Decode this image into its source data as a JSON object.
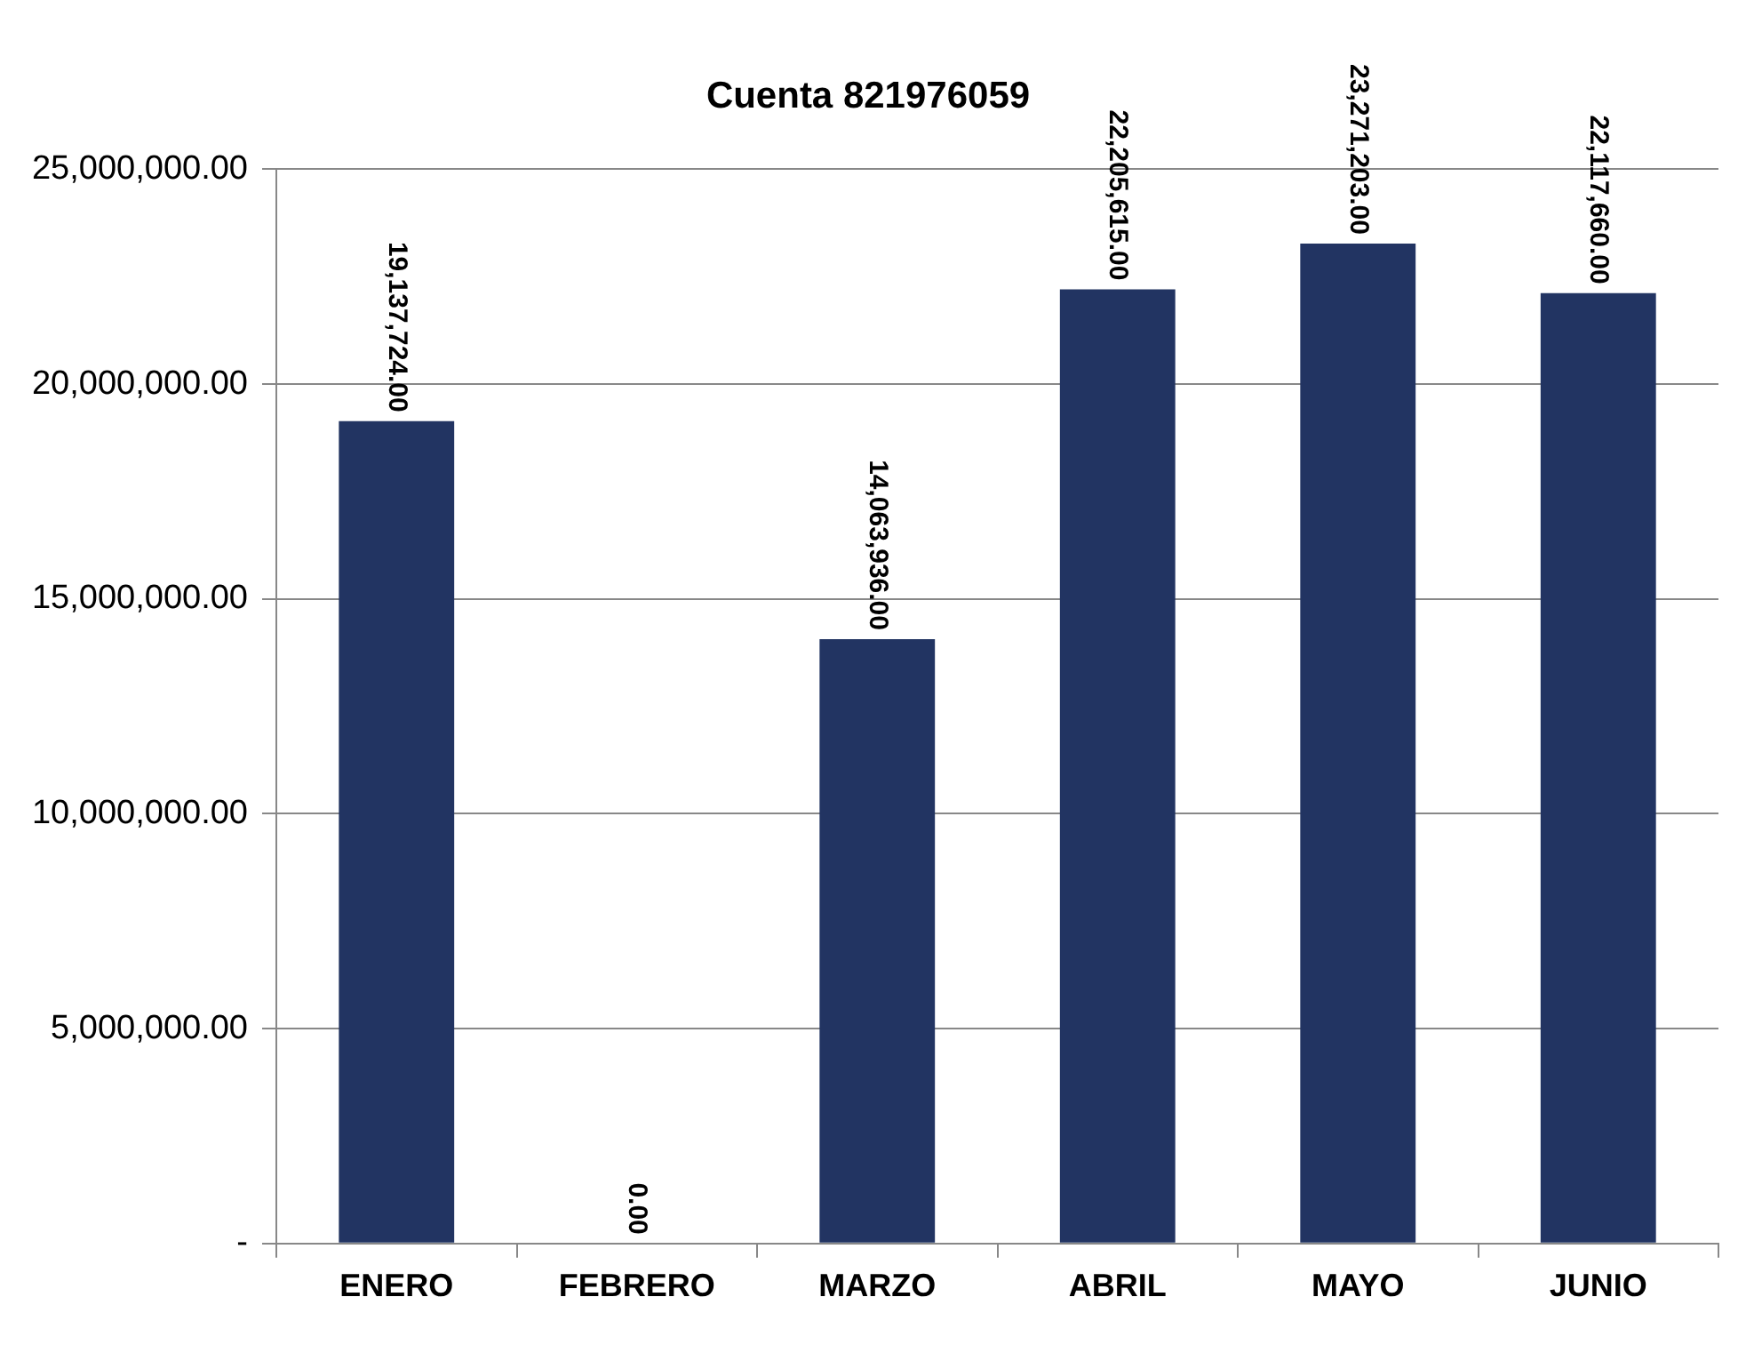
{
  "chart_data": {
    "type": "bar",
    "title": "Cuenta 821976059",
    "categories": [
      "ENERO",
      "FEBRERO",
      "MARZO",
      "ABRIL",
      "MAYO",
      "JUNIO"
    ],
    "values": [
      19137724,
      0,
      14063936,
      22205615,
      23271203,
      22117660
    ],
    "value_labels": [
      "19,137,724.00",
      "0.00",
      "14,063,936.00",
      "22,205,615.00",
      "23,271,203.00",
      "22,117,660.00"
    ],
    "color": "#223462",
    "ylim": [
      0,
      25000000
    ],
    "yticks": [
      {
        "value": 0,
        "label": "-"
      },
      {
        "value": 5000000,
        "label": "5,000,000.00"
      },
      {
        "value": 10000000,
        "label": "10,000,000.00"
      },
      {
        "value": 15000000,
        "label": "15,000,000.00"
      },
      {
        "value": 20000000,
        "label": "20,000,000.00"
      },
      {
        "value": 25000000,
        "label": "25,000,000.00"
      }
    ],
    "grid": "y",
    "legend": false
  }
}
